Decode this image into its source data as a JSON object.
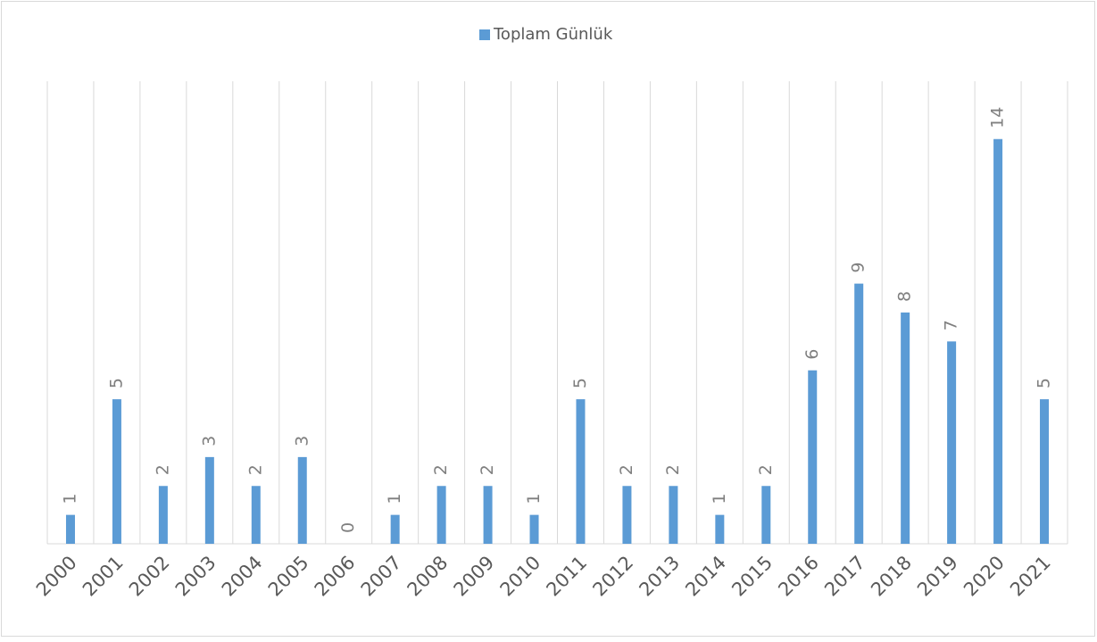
{
  "chart_data": {
    "type": "bar",
    "categories": [
      "2000",
      "2001",
      "2002",
      "2003",
      "2004",
      "2005",
      "2006",
      "2007",
      "2008",
      "2009",
      "2010",
      "2011",
      "2012",
      "2013",
      "2014",
      "2015",
      "2016",
      "2017",
      "2018",
      "2019",
      "2020",
      "2021"
    ],
    "series": [
      {
        "name": "Toplam Günlük",
        "color": "#5b9bd5",
        "values": [
          1,
          5,
          2,
          3,
          2,
          3,
          0,
          1,
          2,
          2,
          1,
          5,
          2,
          2,
          1,
          2,
          6,
          9,
          8,
          7,
          14,
          5
        ]
      }
    ],
    "ylim": [
      0,
      16
    ],
    "legend": "top"
  }
}
